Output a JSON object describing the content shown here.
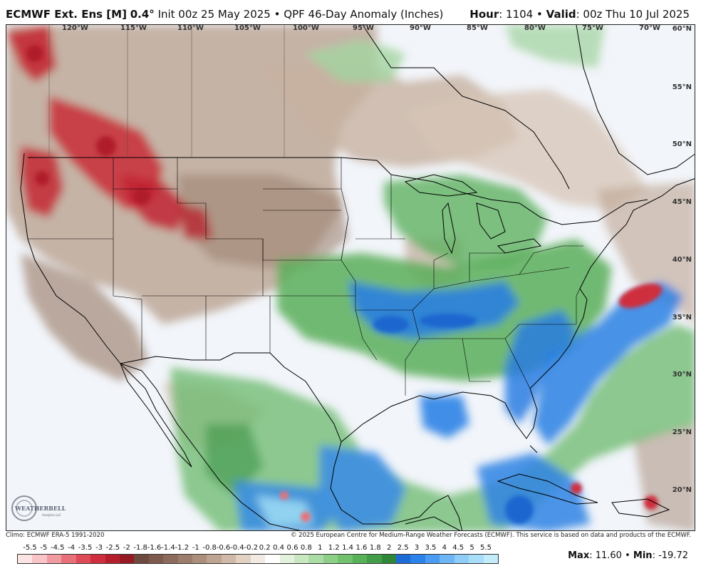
{
  "header": {
    "model": "ECMWF Ext. Ens [M]",
    "resolution": "0.4°",
    "init": "Init 00z 25 May 2025",
    "bullet": "•",
    "product": "QPF 46-Day Anomaly (Inches)",
    "hour_label": "Hour",
    "hour_value": "1104",
    "valid_label": "Valid",
    "valid_value": "00z Thu 10 Jul 2025"
  },
  "map": {
    "longitude_labels": [
      "120°W",
      "115°W",
      "110°W",
      "105°W",
      "100°W",
      "95°W",
      "90°W",
      "85°W",
      "80°W",
      "75°W",
      "70°W"
    ],
    "latitude_labels": [
      "60°N",
      "55°N",
      "50°N",
      "45°N",
      "40°N",
      "35°N",
      "30°N",
      "25°N",
      "20°N"
    ],
    "logo_text": "WEATHERBELL",
    "logo_subtext": "Analytics LLC"
  },
  "footer": {
    "climo": "Climo: ECMWF ERA-5 1991-2020",
    "copyright": "© 2025 European Centre for Medium-Range Weather Forecasts (ECMWF). This service is based on data and products of the ECMWF."
  },
  "colorbar": {
    "ticks": [
      "-5.5",
      "-5",
      "-4.5",
      "-4",
      "-3.5",
      "-3",
      "-2.5",
      "-2",
      "-1.8",
      "-1.6",
      "-1.4",
      "-1.2",
      "-1",
      "-0.8",
      "-0.6",
      "-0.4",
      "-0.2",
      "0.2",
      "0.4",
      "0.6",
      "0.8",
      "1",
      "1.2",
      "1.4",
      "1.6",
      "1.8",
      "2",
      "2.5",
      "3",
      "3.5",
      "4",
      "4.5",
      "5",
      "5.5"
    ],
    "colors": [
      "#fde4e4",
      "#f8c4c8",
      "#f19aa2",
      "#e87078",
      "#de4a55",
      "#cf2f3c",
      "#b51f2b",
      "#961a24",
      "#6e4a3e",
      "#7d5a4d",
      "#8c6b5c",
      "#9c7c6b",
      "#ac8e7c",
      "#bfa391",
      "#d0b9a8",
      "#e2d2c4",
      "#f2ebe4",
      "#ffffff",
      "#e3f2dd",
      "#c9e8c2",
      "#acdca5",
      "#8ecf88",
      "#72c16e",
      "#58b058",
      "#439c48",
      "#2f8739",
      "#1d6bd6",
      "#2a82ea",
      "#4a9cf2",
      "#6db6f6",
      "#8fcdf8",
      "#a9def8",
      "#c3ecfa"
    ],
    "max_label": "Max",
    "max_value": "11.60",
    "min_label": "Min",
    "min_value": "-19.72"
  }
}
